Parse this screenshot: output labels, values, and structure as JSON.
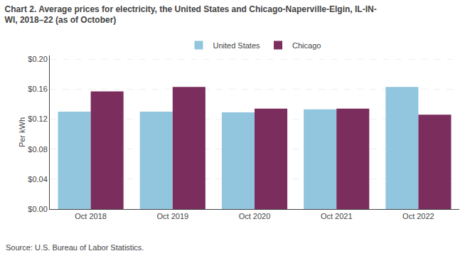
{
  "chart_data": {
    "type": "bar",
    "title": "Chart 2. Average prices for electricity, the United States and Chicago-Naperville-Elgin, IL-IN-\nWI, 2018–22 (as of October)",
    "ylabel": "Per kWh",
    "annotations": [
      "Source: U.S. Bureau of Labor Statistics."
    ],
    "categories": [
      "Oct 2018",
      "Oct 2019",
      "Oct 2020",
      "Oct 2021",
      "Oct 2022"
    ],
    "series": [
      {
        "name": "United States",
        "color": "#92C5DE",
        "values": [
          0.13,
          0.13,
          0.129,
          0.133,
          0.163
        ]
      },
      {
        "name": "Chicago",
        "color": "#7B2D5E",
        "values": [
          0.157,
          0.163,
          0.134,
          0.134,
          0.126
        ]
      }
    ],
    "ylim": [
      0.0,
      0.205
    ],
    "yticks": [
      {
        "value": 0.0,
        "label": "$0.00"
      },
      {
        "value": 0.04,
        "label": "$0.04"
      },
      {
        "value": 0.08,
        "label": "$0.08"
      },
      {
        "value": 0.12,
        "label": "$0.12"
      },
      {
        "value": 0.16,
        "label": "$0.16"
      },
      {
        "value": 0.2,
        "label": "$0.20"
      }
    ],
    "grid": true,
    "legend": "upper center"
  }
}
